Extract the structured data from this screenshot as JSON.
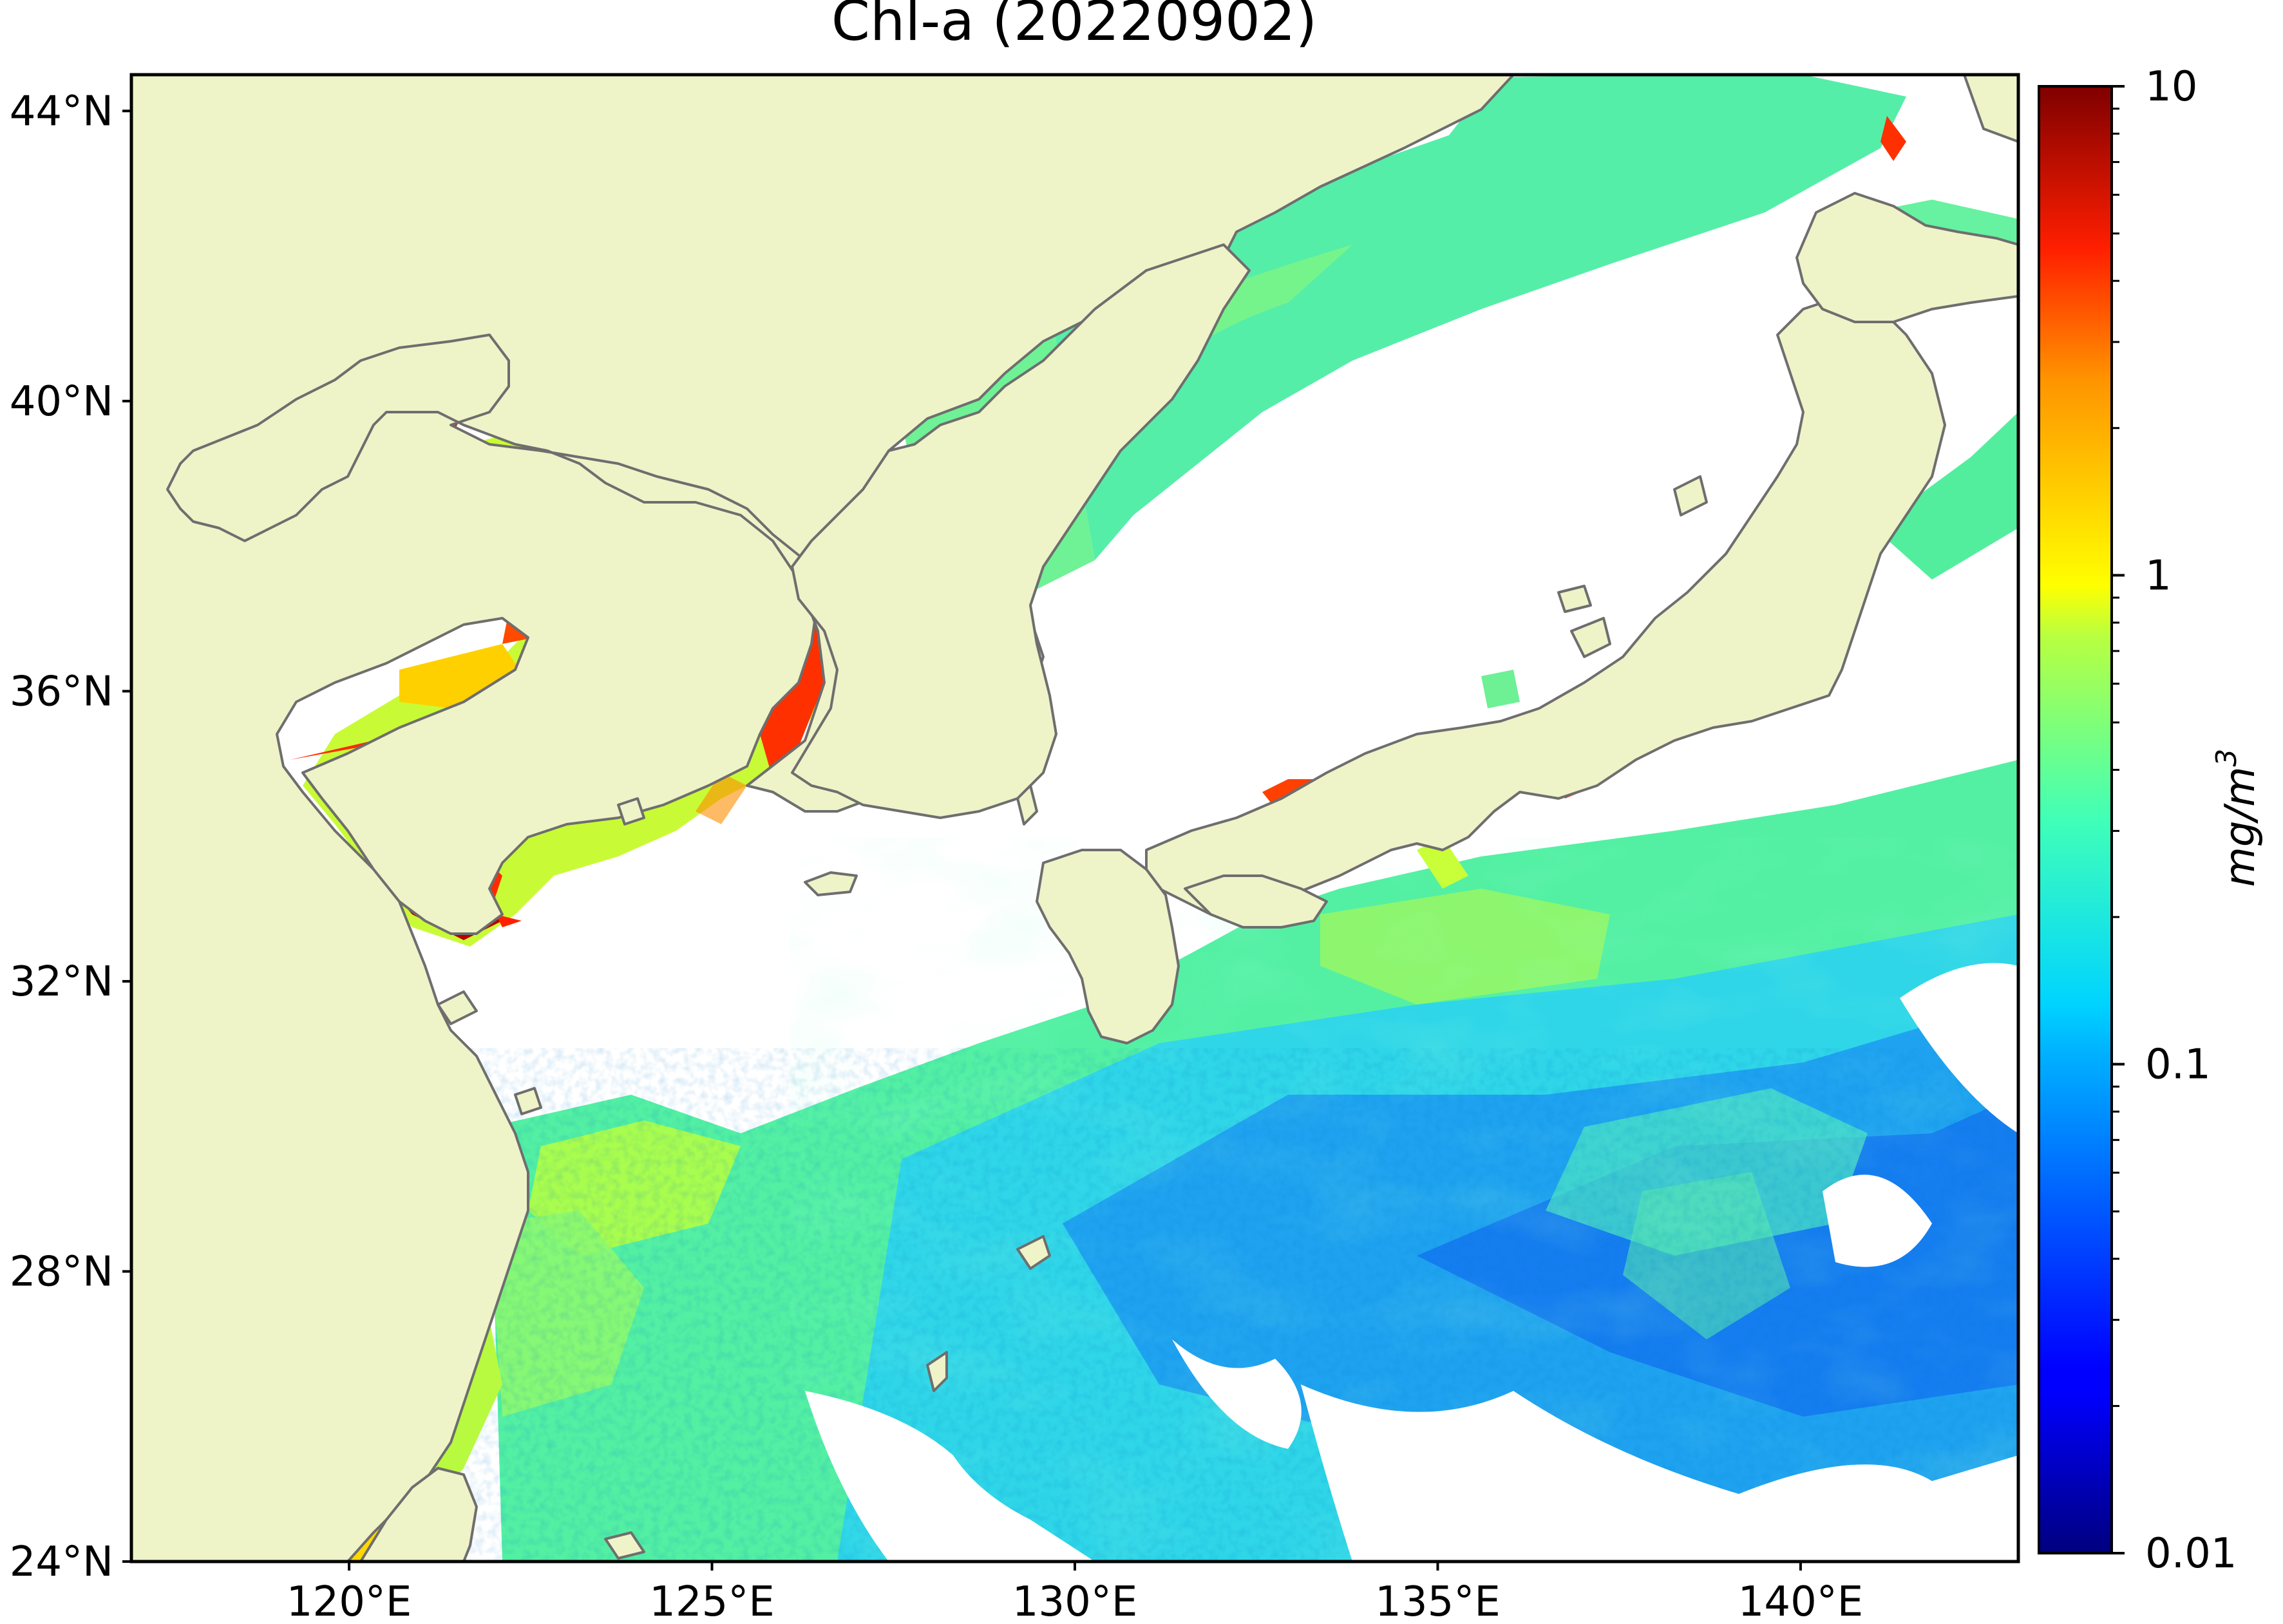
{
  "title": "Chl-a (20220902)",
  "map": {
    "lon_range": [
      117,
      143
    ],
    "lat_range": [
      24,
      44.5
    ],
    "lon_ticks": [
      {
        "value": 120,
        "label": "120°E"
      },
      {
        "value": 125,
        "label": "125°E"
      },
      {
        "value": 130,
        "label": "130°E"
      },
      {
        "value": 135,
        "label": "135°E"
      },
      {
        "value": 140,
        "label": "140°E"
      }
    ],
    "lat_ticks": [
      {
        "value": 24,
        "label": "24°N"
      },
      {
        "value": 28,
        "label": "28°N"
      },
      {
        "value": 32,
        "label": "32°N"
      },
      {
        "value": 36,
        "label": "36°N"
      },
      {
        "value": 40,
        "label": "40°N"
      },
      {
        "value": 44,
        "label": "44°N"
      }
    ],
    "land_color": "#eff3c8",
    "coastline_color": "#6e6e6e",
    "missing_data_color": "#ffffff"
  },
  "colorbar": {
    "label_main": "mg/m",
    "label_sup": "3",
    "scale": "log",
    "colormap": "jet",
    "range": [
      0.01,
      10
    ],
    "ticks": [
      {
        "value": 10,
        "label": "10"
      },
      {
        "value": 1,
        "label": "1"
      },
      {
        "value": 0.1,
        "label": "0.1"
      },
      {
        "value": 0.01,
        "label": "0.01"
      }
    ]
  }
}
